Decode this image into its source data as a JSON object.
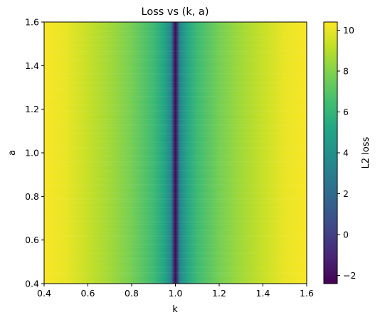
{
  "chart_data": {
    "type": "heatmap",
    "title": "Loss vs (k, a)",
    "xlabel": "k",
    "ylabel": "a",
    "xlim": [
      0.4,
      1.6
    ],
    "ylim": [
      0.4,
      1.6
    ],
    "x_ticks": [
      "0.4",
      "0.6",
      "0.8",
      "1.0",
      "1.2",
      "1.4",
      "1.6"
    ],
    "y_ticks": [
      "0.4",
      "0.6",
      "0.8",
      "1.0",
      "1.2",
      "1.4",
      "1.6"
    ],
    "colorbar": {
      "label": "L2 loss",
      "colormap": "viridis",
      "range": [
        -2.4,
        10.4
      ],
      "ticks": [
        "−2",
        "0",
        "2",
        "4",
        "6",
        "8",
        "10"
      ]
    },
    "profile_along_k": {
      "k": [
        0.4,
        0.5,
        0.6,
        0.7,
        0.8,
        0.9,
        0.95,
        0.98,
        1.0,
        1.02,
        1.05,
        1.1,
        1.2,
        1.3,
        1.4,
        1.5,
        1.6
      ],
      "loss": [
        10.3,
        10.0,
        9.3,
        8.6,
        7.7,
        6.3,
        5.0,
        3.4,
        -2.2,
        3.4,
        5.0,
        6.3,
        7.7,
        8.6,
        9.3,
        10.0,
        10.3
      ]
    },
    "minimum_at_k": 1.0,
    "note_variation_along_a": "negligible (loss depends essentially only on k)"
  }
}
